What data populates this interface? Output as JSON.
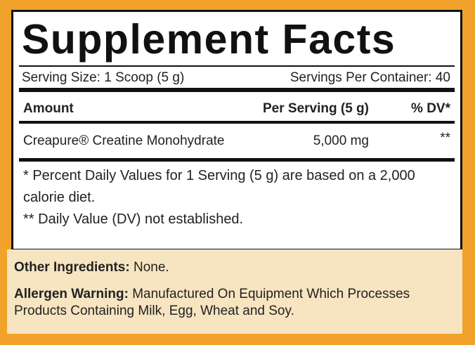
{
  "title": "Supplement Facts",
  "serving_size": "Serving Size: 1 Scoop (5 g)",
  "servings_per_container": "Servings Per Container: 40",
  "table": {
    "header": [
      "Amount",
      "Per Serving (5 g)",
      "% DV*"
    ],
    "rows": [
      [
        "Creapure® Creatine Monohydrate",
        "5,000 mg",
        "**"
      ]
    ]
  },
  "footnotes": [
    "* Percent Daily Values for 1 Serving (5 g) are based on a 2,000 calorie diet.",
    "** Daily Value (DV) not established."
  ],
  "other_ingredients": {
    "label": "Other Ingredients:",
    "text": "None."
  },
  "allergen_warning": {
    "label": "Allergen Warning:",
    "text": "Manufactured On Equipment Which Processes Products Containing Milk, Egg, Wheat and Soy."
  }
}
